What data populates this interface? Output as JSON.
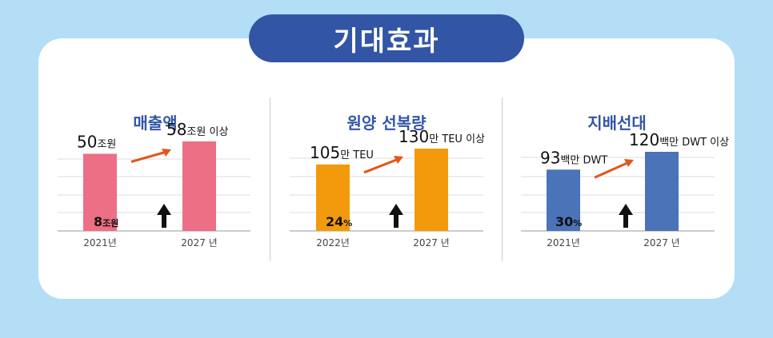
{
  "header": {
    "title": "기대효과"
  },
  "chart_data": [
    {
      "type": "bar",
      "title": "매출액",
      "categories": [
        "2021년",
        "2027 년"
      ],
      "values": [
        50,
        58
      ],
      "value_labels": [
        {
          "number": "50",
          "unit": "조원"
        },
        {
          "number": "58",
          "unit": "조원 이상"
        }
      ],
      "increase": {
        "number": "8",
        "unit": "조원"
      },
      "color": "#ec6f85",
      "ylim": [
        0,
        65
      ]
    },
    {
      "type": "bar",
      "title": "원양 선복량",
      "categories": [
        "2022년",
        "2027 년"
      ],
      "values": [
        105,
        130
      ],
      "value_labels": [
        {
          "number": "105",
          "unit": "만 TEU"
        },
        {
          "number": "130",
          "unit": "만 TEU 이상"
        }
      ],
      "increase": {
        "number": "24",
        "unit": "%"
      },
      "color": "#f39a0c",
      "ylim": [
        0,
        140
      ]
    },
    {
      "type": "bar",
      "title": "지배선대",
      "categories": [
        "2021년",
        "2027 년"
      ],
      "values": [
        93,
        120
      ],
      "value_labels": [
        {
          "number": "93",
          "unit": "백만 DWT"
        },
        {
          "number": "120",
          "unit": "백만 DWT 이상"
        }
      ],
      "increase": {
        "number": "30",
        "unit": "%"
      },
      "color": "#4a73b8",
      "ylim": [
        0,
        130
      ]
    }
  ],
  "colors": {
    "background": "#b3def6",
    "title_pill": "#3355a5",
    "arrow": "#e2561c"
  }
}
